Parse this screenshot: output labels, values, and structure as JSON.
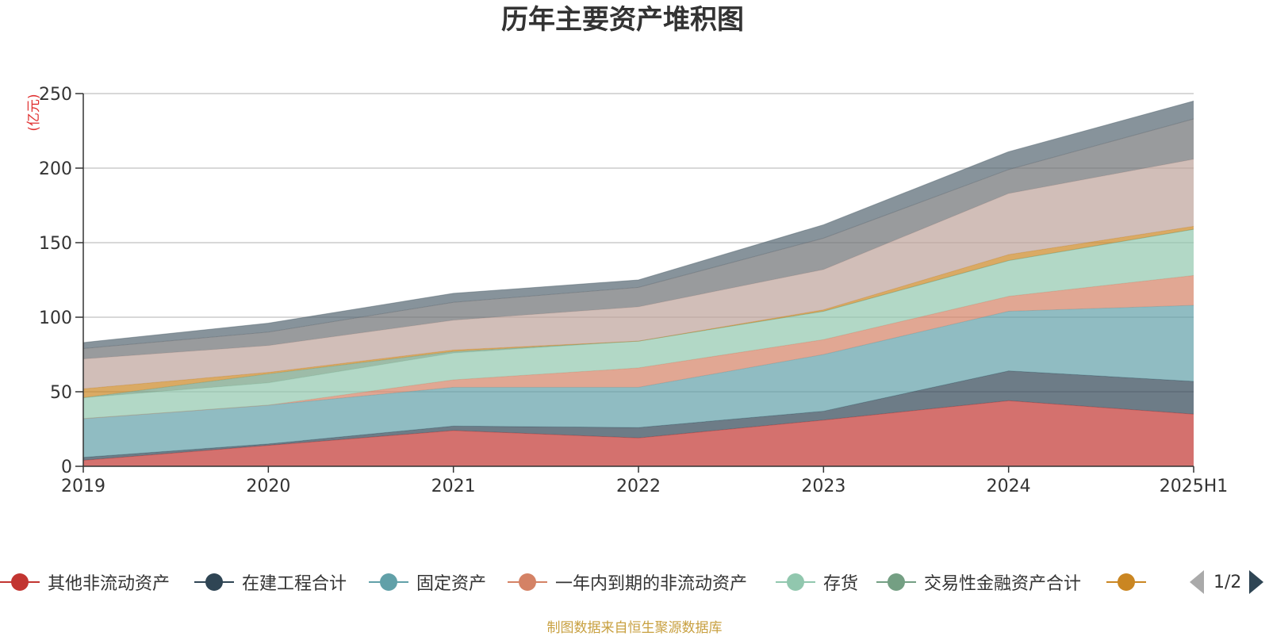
{
  "chart_data": {
    "type": "area",
    "title": "历年主要资产堆积图",
    "ylabel": "(亿元)",
    "ylim": [
      0,
      250
    ],
    "yticks": [
      0,
      50,
      100,
      150,
      200,
      250
    ],
    "categories": [
      "2019",
      "2020",
      "2021",
      "2022",
      "2023",
      "2024",
      "2025H1"
    ],
    "grid": true,
    "legend_position": "bottom",
    "series": [
      {
        "name": "其他非流动资产",
        "color": "#c23531",
        "values": [
          4,
          14,
          24,
          19,
          31,
          44,
          35
        ]
      },
      {
        "name": "在建工程合计",
        "color": "#2f4554",
        "values": [
          2,
          1,
          3,
          7,
          6,
          20,
          22
        ]
      },
      {
        "name": "固定资产",
        "color": "#61a0a8",
        "values": [
          26,
          26,
          26,
          27,
          38,
          40,
          51
        ]
      },
      {
        "name": "一年内到期的非流动资产",
        "color": "#d48265",
        "values": [
          0,
          0,
          5,
          13,
          10,
          10,
          20
        ]
      },
      {
        "name": "存货",
        "color": "#91c7ae",
        "values": [
          14,
          15,
          18,
          18,
          19,
          24,
          31
        ]
      },
      {
        "name": "交易性金融资产合计",
        "color": "#749f83",
        "values": [
          0,
          6,
          1,
          0,
          0,
          0,
          0
        ]
      },
      {
        "name": "",
        "color": "#ca8622",
        "values": [
          6,
          1,
          1,
          0,
          1,
          4,
          2
        ]
      },
      {
        "name": "",
        "color": "#bda29a",
        "values": [
          20,
          18,
          20,
          23,
          27,
          41,
          45
        ]
      },
      {
        "name": "",
        "color": "#6e7074",
        "values": [
          7,
          9,
          12,
          13,
          21,
          16,
          27
        ]
      },
      {
        "name": "",
        "color": "#546570",
        "values": [
          4,
          6,
          6,
          5,
          9,
          12,
          12
        ]
      }
    ]
  },
  "legend": {
    "items": [
      {
        "name": "其他非流动资产",
        "color": "#c23531"
      },
      {
        "name": "在建工程合计",
        "color": "#2f4554"
      },
      {
        "name": "固定资产",
        "color": "#61a0a8"
      },
      {
        "name": "一年内到期的非流动资产",
        "color": "#d48265"
      },
      {
        "name": "存货",
        "color": "#91c7ae"
      },
      {
        "name": "交易性金融资产合计",
        "color": "#749f83"
      },
      {
        "name": "",
        "color": "#ca8622"
      }
    ],
    "page_text": "1/2"
  },
  "footer": "制图数据来自恒生聚源数据库"
}
